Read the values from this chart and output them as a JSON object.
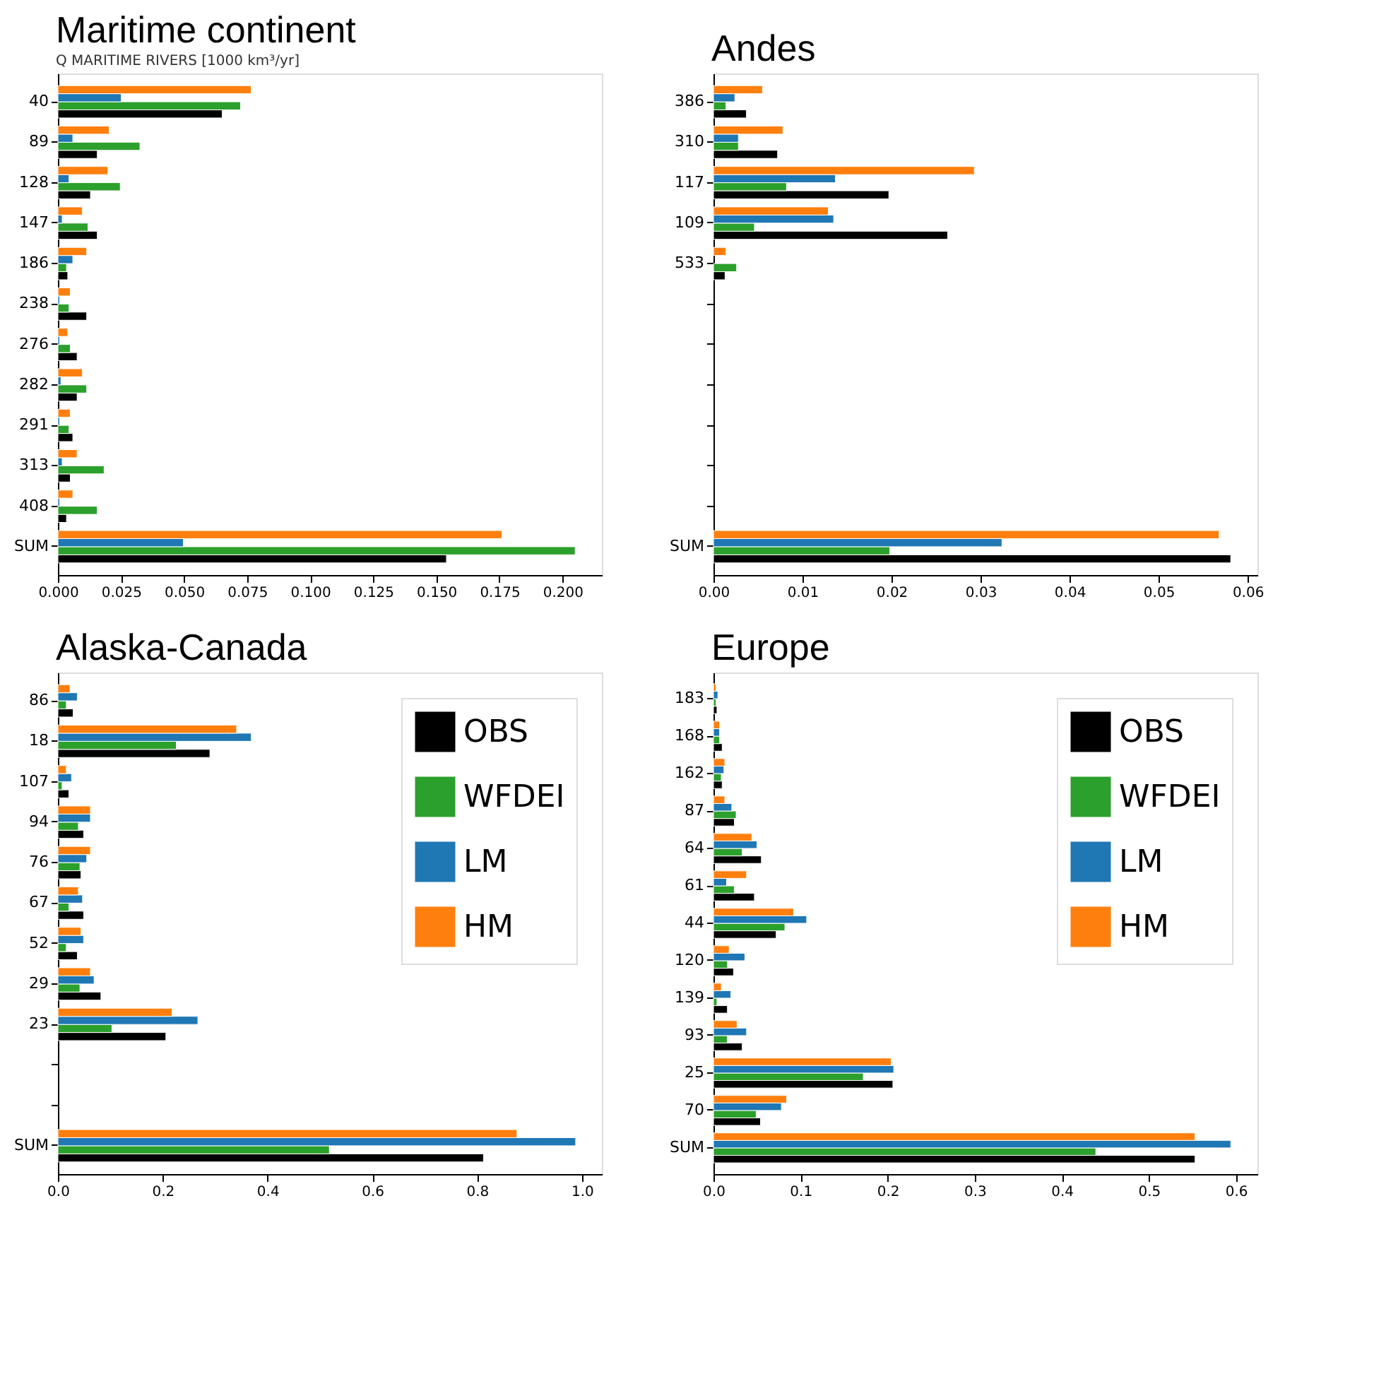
{
  "chart_data": [
    {
      "type": "bar",
      "orientation": "horizontal",
      "title": "Maritime continent",
      "subtitle": "Q MARITIME RIVERS [1000 km³/yr]",
      "legend": false,
      "grid": false,
      "categories": [
        "40",
        "89",
        "128",
        "147",
        "186",
        "238",
        "276",
        "282",
        "291",
        "313",
        "408",
        "SUM"
      ],
      "xlim": [
        0,
        0.2156
      ],
      "xticks": [
        {
          "value": 0,
          "label": "0.000"
        },
        {
          "value": 0.025,
          "label": "0.025"
        },
        {
          "value": 0.05,
          "label": "0.050"
        },
        {
          "value": 0.075,
          "label": "0.075"
        },
        {
          "value": 0.1,
          "label": "0.100"
        },
        {
          "value": 0.125,
          "label": "0.125"
        },
        {
          "value": 0.15,
          "label": "0.150"
        },
        {
          "value": 0.175,
          "label": "0.175"
        },
        {
          "value": 0.2,
          "label": "0.200"
        }
      ],
      "series": [
        {
          "color": "#000000",
          "values": [
            0.0651,
            0.0156,
            0.0129,
            0.0156,
            0.0039,
            0.0114,
            0.0076,
            0.0076,
            0.0059,
            0.0049,
            0.0034,
            0.154
          ]
        },
        {
          "color": "#2ca02c",
          "values": [
            0.0724,
            0.0325,
            0.0247,
            0.0119,
            0.0034,
            0.0044,
            0.0049,
            0.0114,
            0.0044,
            0.0183,
            0.0156,
            0.205
          ]
        },
        {
          "color": "#1f77b4",
          "values": [
            0.0251,
            0.0059,
            0.0044,
            0.0017,
            0.0059,
            0.0007,
            0.0007,
            0.0012,
            0.0007,
            0.0017,
            0.0007,
            0.0497
          ]
        },
        {
          "color": "#ff7f0e",
          "values": [
            0.0766,
            0.0203,
            0.0198,
            0.0097,
            0.0114,
            0.0049,
            0.0039,
            0.0097,
            0.0049,
            0.0076,
            0.0059,
            0.176
          ]
        }
      ]
    },
    {
      "type": "bar",
      "orientation": "horizontal",
      "title": "Andes",
      "legend": false,
      "grid": false,
      "categories": [
        "386",
        "310",
        "117",
        "109",
        "533",
        null,
        null,
        null,
        null,
        null,
        null,
        "SUM"
      ],
      "xlim": [
        0,
        0.0611
      ],
      "xticks": [
        {
          "value": 0,
          "label": "0.00"
        },
        {
          "value": 0.01,
          "label": "0.01"
        },
        {
          "value": 0.02,
          "label": "0.02"
        },
        {
          "value": 0.03,
          "label": "0.03"
        },
        {
          "value": 0.04,
          "label": "0.04"
        },
        {
          "value": 0.05,
          "label": "0.05"
        },
        {
          "value": 0.06,
          "label": "0.06"
        }
      ],
      "series": [
        {
          "color": "#000000",
          "values": [
            0.0037,
            0.0072,
            0.0197,
            0.0263,
            0.0013,
            null,
            null,
            null,
            null,
            null,
            null,
            0.0581
          ]
        },
        {
          "color": "#2ca02c",
          "values": [
            0.0014,
            0.0028,
            0.0082,
            0.0046,
            0.0026,
            null,
            null,
            null,
            null,
            null,
            null,
            0.0198
          ]
        },
        {
          "color": "#1f77b4",
          "values": [
            0.0024,
            0.0028,
            0.0137,
            0.0135,
            null,
            null,
            null,
            null,
            null,
            null,
            null,
            0.0324
          ]
        },
        {
          "color": "#ff7f0e",
          "values": [
            0.0055,
            0.0078,
            0.0293,
            0.0129,
            0.0014,
            null,
            null,
            null,
            null,
            null,
            null,
            0.0568
          ]
        }
      ]
    },
    {
      "type": "bar",
      "orientation": "horizontal",
      "title": "Alaska-Canada",
      "legend": "top right",
      "grid": false,
      "categories": [
        "86",
        "18",
        "107",
        "94",
        "76",
        "67",
        "52",
        "29",
        "23",
        null,
        null,
        "SUM"
      ],
      "xlim": [
        0,
        1.038
      ],
      "xticks": [
        {
          "value": 0,
          "label": "0.0"
        },
        {
          "value": 0.2,
          "label": "0.2"
        },
        {
          "value": 0.4,
          "label": "0.4"
        },
        {
          "value": 0.6,
          "label": "0.6"
        },
        {
          "value": 0.8,
          "label": "0.8"
        },
        {
          "value": 1,
          "label": "1.0"
        }
      ],
      "series": [
        {
          "name": "OBS",
          "color": "#000000",
          "values": [
            0.029,
            0.29,
            0.021,
            0.049,
            0.044,
            0.049,
            0.037,
            0.082,
            0.206,
            null,
            null,
            0.812
          ]
        },
        {
          "name": "WFDEI",
          "color": "#2ca02c",
          "values": [
            0.016,
            0.226,
            0.008,
            0.039,
            0.042,
            0.021,
            0.016,
            0.042,
            0.103,
            null,
            null,
            0.518
          ]
        },
        {
          "name": "LM",
          "color": "#1f77b4",
          "values": [
            0.037,
            0.369,
            0.026,
            0.062,
            0.055,
            0.047,
            0.049,
            0.069,
            0.267,
            null,
            null,
            0.988
          ]
        },
        {
          "name": "HM",
          "color": "#ff7f0e",
          "values": [
            0.023,
            0.341,
            0.016,
            0.062,
            0.062,
            0.039,
            0.044,
            0.062,
            0.218,
            null,
            null,
            0.876
          ]
        }
      ]
    },
    {
      "type": "bar",
      "orientation": "horizontal",
      "title": "Europe",
      "legend": "top right",
      "grid": false,
      "categories": [
        "183",
        "168",
        "162",
        "87",
        "64",
        "61",
        "44",
        "120",
        "139",
        "93",
        "25",
        "70",
        "SUM"
      ],
      "xlim": [
        0,
        0.6246
      ],
      "xticks": [
        {
          "value": 0,
          "label": "0.0"
        },
        {
          "value": 0.1,
          "label": "0.1"
        },
        {
          "value": 0.2,
          "label": "0.2"
        },
        {
          "value": 0.3,
          "label": "0.3"
        },
        {
          "value": 0.4,
          "label": "0.4"
        },
        {
          "value": 0.5,
          "label": "0.5"
        },
        {
          "value": 0.6,
          "label": "0.6"
        }
      ],
      "series": [
        {
          "name": "OBS",
          "color": "#000000",
          "values": [
            0.004,
            0.01,
            0.01,
            0.024,
            0.055,
            0.047,
            0.072,
            0.023,
            0.016,
            0.033,
            0.206,
            0.054,
            0.553
          ]
        },
        {
          "name": "WFDEI",
          "color": "#2ca02c",
          "values": [
            0.003,
            0.007,
            0.009,
            0.026,
            0.033,
            0.024,
            0.082,
            0.016,
            0.004,
            0.016,
            0.172,
            0.049,
            0.439
          ]
        },
        {
          "name": "LM",
          "color": "#1f77b4",
          "values": [
            0.005,
            0.007,
            0.012,
            0.021,
            0.05,
            0.015,
            0.107,
            0.036,
            0.02,
            0.038,
            0.207,
            0.078,
            0.594
          ]
        },
        {
          "name": "HM",
          "color": "#ff7f0e",
          "values": [
            0.003,
            0.007,
            0.013,
            0.013,
            0.044,
            0.038,
            0.092,
            0.018,
            0.009,
            0.027,
            0.204,
            0.084,
            0.553
          ]
        }
      ]
    }
  ]
}
